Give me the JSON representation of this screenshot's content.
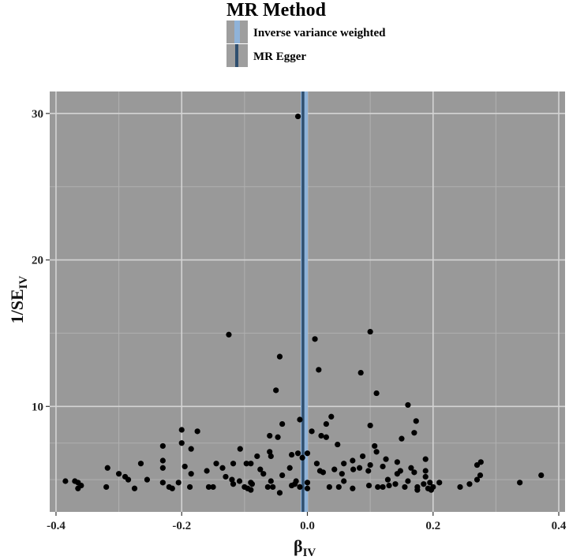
{
  "chart_data": {
    "type": "scatter",
    "legend": {
      "title": "MR Method",
      "position": "top",
      "entries": [
        {
          "label": "Inverse variance weighted",
          "color": "#8fb3d9"
        },
        {
          "label": "MR Egger",
          "color": "#2f4f6f"
        }
      ]
    },
    "xlabel": {
      "main": "β",
      "sub": "IV"
    },
    "ylabel": {
      "main": "1/SE",
      "sub": "IV"
    },
    "xlim": [
      -0.41,
      0.41
    ],
    "ylim": [
      2.8,
      31.5
    ],
    "xticks": [
      -0.4,
      -0.2,
      0.0,
      0.2,
      0.4
    ],
    "xtick_labels": [
      "-0.4",
      "-0.2",
      "0.0",
      "0.2",
      "0.4"
    ],
    "yticks": [
      10,
      20,
      30
    ],
    "ytick_labels": [
      "10",
      "20",
      "30"
    ],
    "grid": true,
    "panel_color": "#999999",
    "point_color": "#000000",
    "lines": [
      {
        "name": "Inverse variance weighted",
        "x": -0.005,
        "color": "#8fb3d9"
      },
      {
        "name": "MR Egger",
        "x": -0.007,
        "color": "#2f4f6f"
      }
    ],
    "points": [
      [
        -0.015,
        29.8
      ],
      [
        -0.125,
        14.9
      ],
      [
        0.1,
        15.1
      ],
      [
        0.012,
        14.6
      ],
      [
        -0.044,
        13.4
      ],
      [
        0.018,
        12.5
      ],
      [
        0.085,
        12.3
      ],
      [
        -0.05,
        11.1
      ],
      [
        0.11,
        10.9
      ],
      [
        0.16,
        10.1
      ],
      [
        -0.012,
        9.1
      ],
      [
        0.038,
        9.3
      ],
      [
        0.173,
        9.0
      ],
      [
        0.03,
        8.8
      ],
      [
        -0.04,
        8.8
      ],
      [
        -0.2,
        8.4
      ],
      [
        -0.175,
        8.3
      ],
      [
        0.1,
        8.7
      ],
      [
        0.022,
        8.0
      ],
      [
        0.17,
        8.2
      ],
      [
        0.007,
        8.3
      ],
      [
        -0.06,
        8.0
      ],
      [
        -0.047,
        7.9
      ],
      [
        0.03,
        7.9
      ],
      [
        -0.2,
        7.5
      ],
      [
        -0.23,
        7.3
      ],
      [
        -0.185,
        7.1
      ],
      [
        -0.107,
        7.1
      ],
      [
        0.048,
        7.4
      ],
      [
        0.107,
        7.3
      ],
      [
        0.15,
        7.8
      ],
      [
        -0.06,
        6.9
      ],
      [
        -0.015,
        6.8
      ],
      [
        -0.025,
        6.7
      ],
      [
        0.0,
        6.8
      ],
      [
        0.11,
        6.9
      ],
      [
        -0.08,
        6.6
      ],
      [
        -0.058,
        6.6
      ],
      [
        -0.008,
        6.5
      ],
      [
        0.088,
        6.6
      ],
      [
        0.072,
        6.3
      ],
      [
        0.125,
        6.4
      ],
      [
        0.188,
        6.4
      ],
      [
        -0.265,
        6.1
      ],
      [
        -0.23,
        6.3
      ],
      [
        -0.145,
        6.1
      ],
      [
        -0.118,
        6.1
      ],
      [
        -0.097,
        6.1
      ],
      [
        -0.09,
        6.1
      ],
      [
        0.015,
        6.1
      ],
      [
        0.058,
        6.1
      ],
      [
        0.1,
        6.0
      ],
      [
        0.143,
        6.2
      ],
      [
        0.276,
        6.2
      ],
      [
        0.27,
        6.0
      ],
      [
        -0.318,
        5.8
      ],
      [
        -0.23,
        5.8
      ],
      [
        -0.195,
        5.9
      ],
      [
        -0.16,
        5.6
      ],
      [
        -0.135,
        5.8
      ],
      [
        -0.075,
        5.7
      ],
      [
        -0.028,
        5.8
      ],
      [
        0.02,
        5.6
      ],
      [
        0.043,
        5.7
      ],
      [
        0.083,
        5.8
      ],
      [
        0.12,
        5.9
      ],
      [
        0.148,
        5.6
      ],
      [
        0.165,
        5.8
      ],
      [
        0.188,
        5.6
      ],
      [
        -0.3,
        5.4
      ],
      [
        -0.29,
        5.2
      ],
      [
        -0.185,
        5.4
      ],
      [
        -0.13,
        5.2
      ],
      [
        -0.07,
        5.4
      ],
      [
        -0.04,
        5.3
      ],
      [
        0.025,
        5.5
      ],
      [
        0.055,
        5.4
      ],
      [
        0.073,
        5.7
      ],
      [
        0.097,
        5.6
      ],
      [
        0.143,
        5.4
      ],
      [
        0.17,
        5.5
      ],
      [
        0.188,
        5.2
      ],
      [
        0.275,
        5.3
      ],
      [
        0.372,
        5.3
      ],
      [
        -0.285,
        5.0
      ],
      [
        -0.255,
        5.0
      ],
      [
        -0.12,
        5.0
      ],
      [
        -0.108,
        4.9
      ],
      [
        -0.09,
        4.8
      ],
      [
        -0.058,
        4.9
      ],
      [
        -0.018,
        4.9
      ],
      [
        0.058,
        4.9
      ],
      [
        0.128,
        5.0
      ],
      [
        0.16,
        4.9
      ],
      [
        0.27,
        5.0
      ],
      [
        -0.385,
        4.9
      ],
      [
        -0.37,
        4.9
      ],
      [
        -0.365,
        4.8
      ],
      [
        -0.23,
        4.8
      ],
      [
        -0.205,
        4.8
      ],
      [
        -0.118,
        4.7
      ],
      [
        -0.088,
        4.7
      ],
      [
        -0.02,
        4.7
      ],
      [
        0.0,
        4.8
      ],
      [
        0.14,
        4.7
      ],
      [
        0.185,
        4.7
      ],
      [
        0.195,
        4.8
      ],
      [
        0.21,
        4.8
      ],
      [
        0.258,
        4.7
      ],
      [
        0.338,
        4.8
      ],
      [
        -0.36,
        4.6
      ],
      [
        -0.32,
        4.5
      ],
      [
        -0.275,
        4.4
      ],
      [
        -0.22,
        4.5
      ],
      [
        -0.187,
        4.5
      ],
      [
        -0.157,
        4.5
      ],
      [
        -0.15,
        4.5
      ],
      [
        -0.1,
        4.5
      ],
      [
        -0.095,
        4.4
      ],
      [
        -0.063,
        4.5
      ],
      [
        -0.055,
        4.5
      ],
      [
        -0.025,
        4.6
      ],
      [
        -0.012,
        4.5
      ],
      [
        0.0,
        4.4
      ],
      [
        0.035,
        4.5
      ],
      [
        0.05,
        4.5
      ],
      [
        0.098,
        4.6
      ],
      [
        0.112,
        4.5
      ],
      [
        0.12,
        4.5
      ],
      [
        0.13,
        4.6
      ],
      [
        0.155,
        4.5
      ],
      [
        0.175,
        4.5
      ],
      [
        0.192,
        4.4
      ],
      [
        0.2,
        4.5
      ],
      [
        0.243,
        4.5
      ],
      [
        -0.365,
        4.4
      ],
      [
        -0.215,
        4.4
      ],
      [
        -0.09,
        4.3
      ],
      [
        -0.044,
        4.1
      ],
      [
        0.072,
        4.4
      ],
      [
        0.175,
        4.3
      ],
      [
        0.197,
        4.3
      ]
    ]
  }
}
